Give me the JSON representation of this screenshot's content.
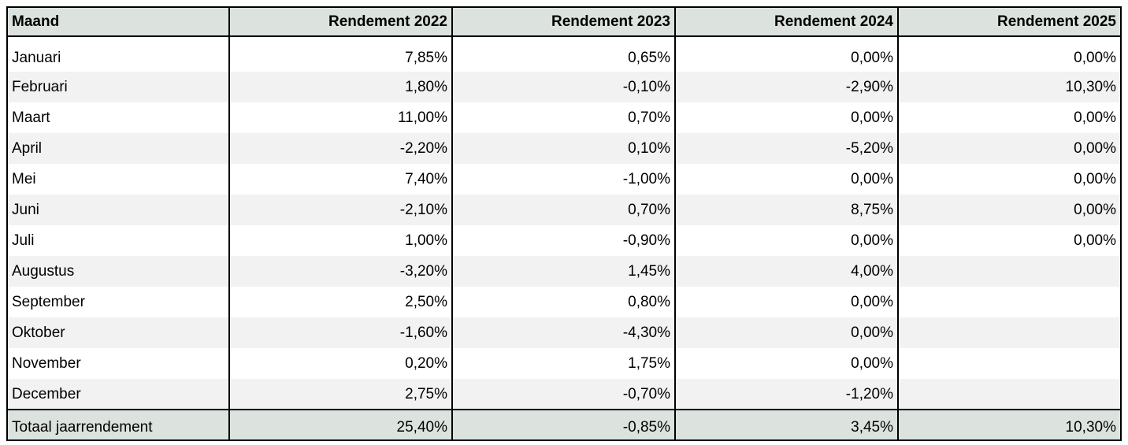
{
  "table": {
    "headers": [
      "Maand",
      "Rendement 2022",
      "Rendement 2023",
      "Rendement 2024",
      "Rendement 2025"
    ],
    "rows": [
      {
        "month": "Januari",
        "values": [
          "7,85%",
          "0,65%",
          "0,00%",
          "0,00%"
        ]
      },
      {
        "month": "Februari",
        "values": [
          "1,80%",
          "-0,10%",
          "-2,90%",
          "10,30%"
        ]
      },
      {
        "month": "Maart",
        "values": [
          "11,00%",
          "0,70%",
          "0,00%",
          "0,00%"
        ]
      },
      {
        "month": "April",
        "values": [
          "-2,20%",
          "0,10%",
          "-5,20%",
          "0,00%"
        ]
      },
      {
        "month": "Mei",
        "values": [
          "7,40%",
          "-1,00%",
          "0,00%",
          "0,00%"
        ]
      },
      {
        "month": "Juni",
        "values": [
          "-2,10%",
          "0,70%",
          "8,75%",
          "0,00%"
        ]
      },
      {
        "month": "Juli",
        "values": [
          "1,00%",
          "-0,90%",
          "0,00%",
          "0,00%"
        ]
      },
      {
        "month": "Augustus",
        "values": [
          "-3,20%",
          "1,45%",
          "4,00%",
          ""
        ]
      },
      {
        "month": "September",
        "values": [
          "2,50%",
          "0,80%",
          "0,00%",
          ""
        ]
      },
      {
        "month": "Oktober",
        "values": [
          "-1,60%",
          "-4,30%",
          "0,00%",
          ""
        ]
      },
      {
        "month": "November",
        "values": [
          "0,20%",
          "1,75%",
          "0,00%",
          ""
        ]
      },
      {
        "month": "December",
        "values": [
          "2,75%",
          "-0,70%",
          "-1,20%",
          ""
        ]
      }
    ],
    "total": {
      "label": "Totaal jaarrendement",
      "values": [
        "25,40%",
        "-0,85%",
        "3,45%",
        "10,30%"
      ]
    }
  },
  "colors": {
    "header_bg": "#dce3de",
    "stripe_bg": "#f2f2f2",
    "border": "#000000"
  }
}
